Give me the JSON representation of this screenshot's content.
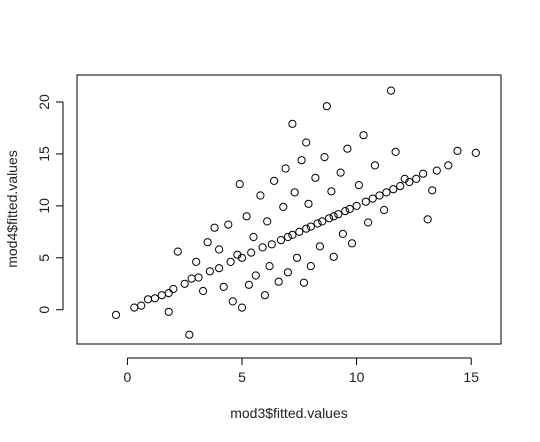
{
  "chart_data": {
    "type": "scatter",
    "title": "",
    "xlabel": "mod3$fitted.values",
    "ylabel": "mod4$fitted.values",
    "xlim": [
      -2.2,
      16.3
    ],
    "ylim": [
      -3.3,
      22.6
    ],
    "xticks": [
      0,
      5,
      10,
      15
    ],
    "yticks": [
      0,
      5,
      10,
      15,
      20
    ],
    "grid": false,
    "legend": "none",
    "marker": "open-circle",
    "marker_color": "#000000",
    "points": [
      {
        "x": -0.5,
        "y": -0.5
      },
      {
        "x": 0.3,
        "y": 0.2
      },
      {
        "x": 0.6,
        "y": 0.4
      },
      {
        "x": 0.9,
        "y": 1.0
      },
      {
        "x": 1.2,
        "y": 1.1
      },
      {
        "x": 1.5,
        "y": 1.4
      },
      {
        "x": 1.8,
        "y": 1.6
      },
      {
        "x": 1.8,
        "y": -0.2
      },
      {
        "x": 2.0,
        "y": 2.0
      },
      {
        "x": 2.2,
        "y": 5.6
      },
      {
        "x": 2.5,
        "y": 2.5
      },
      {
        "x": 2.7,
        "y": -2.4
      },
      {
        "x": 2.8,
        "y": 3.0
      },
      {
        "x": 3.0,
        "y": 4.6
      },
      {
        "x": 3.1,
        "y": 3.1
      },
      {
        "x": 3.3,
        "y": 1.8
      },
      {
        "x": 3.5,
        "y": 6.5
      },
      {
        "x": 3.6,
        "y": 3.7
      },
      {
        "x": 3.8,
        "y": 7.9
      },
      {
        "x": 4.0,
        "y": 4.0
      },
      {
        "x": 4.0,
        "y": 5.8
      },
      {
        "x": 4.2,
        "y": 2.2
      },
      {
        "x": 4.4,
        "y": 8.2
      },
      {
        "x": 4.5,
        "y": 4.6
      },
      {
        "x": 4.6,
        "y": 0.8
      },
      {
        "x": 4.8,
        "y": 5.3
      },
      {
        "x": 4.9,
        "y": 12.1
      },
      {
        "x": 5.0,
        "y": 5.0
      },
      {
        "x": 5.0,
        "y": 0.2
      },
      {
        "x": 5.2,
        "y": 9.0
      },
      {
        "x": 5.3,
        "y": 2.4
      },
      {
        "x": 5.4,
        "y": 5.5
      },
      {
        "x": 5.5,
        "y": 7.0
      },
      {
        "x": 5.6,
        "y": 3.3
      },
      {
        "x": 5.8,
        "y": 11.0
      },
      {
        "x": 5.9,
        "y": 6.0
      },
      {
        "x": 6.0,
        "y": 1.4
      },
      {
        "x": 6.1,
        "y": 8.5
      },
      {
        "x": 6.2,
        "y": 4.2
      },
      {
        "x": 6.3,
        "y": 6.3
      },
      {
        "x": 6.4,
        "y": 12.4
      },
      {
        "x": 6.6,
        "y": 2.7
      },
      {
        "x": 6.7,
        "y": 6.7
      },
      {
        "x": 6.8,
        "y": 9.9
      },
      {
        "x": 6.9,
        "y": 13.6
      },
      {
        "x": 7.0,
        "y": 7.0
      },
      {
        "x": 7.0,
        "y": 3.6
      },
      {
        "x": 7.2,
        "y": 17.9
      },
      {
        "x": 7.2,
        "y": 7.2
      },
      {
        "x": 7.3,
        "y": 11.3
      },
      {
        "x": 7.4,
        "y": 5.0
      },
      {
        "x": 7.5,
        "y": 7.5
      },
      {
        "x": 7.6,
        "y": 14.4
      },
      {
        "x": 7.7,
        "y": 2.6
      },
      {
        "x": 7.8,
        "y": 7.8
      },
      {
        "x": 7.8,
        "y": 16.1
      },
      {
        "x": 7.9,
        "y": 10.2
      },
      {
        "x": 8.0,
        "y": 8.0
      },
      {
        "x": 8.0,
        "y": 4.2
      },
      {
        "x": 8.2,
        "y": 12.7
      },
      {
        "x": 8.3,
        "y": 8.3
      },
      {
        "x": 8.4,
        "y": 6.1
      },
      {
        "x": 8.5,
        "y": 8.5
      },
      {
        "x": 8.6,
        "y": 14.7
      },
      {
        "x": 8.7,
        "y": 19.6
      },
      {
        "x": 8.8,
        "y": 8.8
      },
      {
        "x": 8.9,
        "y": 11.4
      },
      {
        "x": 9.0,
        "y": 9.0
      },
      {
        "x": 9.0,
        "y": 5.1
      },
      {
        "x": 9.2,
        "y": 9.2
      },
      {
        "x": 9.3,
        "y": 13.2
      },
      {
        "x": 9.4,
        "y": 7.3
      },
      {
        "x": 9.5,
        "y": 9.5
      },
      {
        "x": 9.6,
        "y": 15.5
      },
      {
        "x": 9.7,
        "y": 9.7
      },
      {
        "x": 9.8,
        "y": 6.4
      },
      {
        "x": 10.0,
        "y": 10.0
      },
      {
        "x": 10.1,
        "y": 12.0
      },
      {
        "x": 10.3,
        "y": 16.8
      },
      {
        "x": 10.4,
        "y": 10.4
      },
      {
        "x": 10.5,
        "y": 8.4
      },
      {
        "x": 10.7,
        "y": 10.7
      },
      {
        "x": 10.8,
        "y": 13.9
      },
      {
        "x": 11.0,
        "y": 11.0
      },
      {
        "x": 11.2,
        "y": 9.6
      },
      {
        "x": 11.3,
        "y": 11.3
      },
      {
        "x": 11.5,
        "y": 21.1
      },
      {
        "x": 11.6,
        "y": 11.6
      },
      {
        "x": 11.7,
        "y": 15.2
      },
      {
        "x": 11.9,
        "y": 11.9
      },
      {
        "x": 12.1,
        "y": 12.6
      },
      {
        "x": 12.3,
        "y": 12.3
      },
      {
        "x": 12.6,
        "y": 12.6
      },
      {
        "x": 12.9,
        "y": 13.1
      },
      {
        "x": 13.1,
        "y": 8.7
      },
      {
        "x": 13.3,
        "y": 11.5
      },
      {
        "x": 13.5,
        "y": 13.4
      },
      {
        "x": 14.0,
        "y": 13.9
      },
      {
        "x": 14.4,
        "y": 15.3
      },
      {
        "x": 15.2,
        "y": 15.1
      }
    ]
  }
}
